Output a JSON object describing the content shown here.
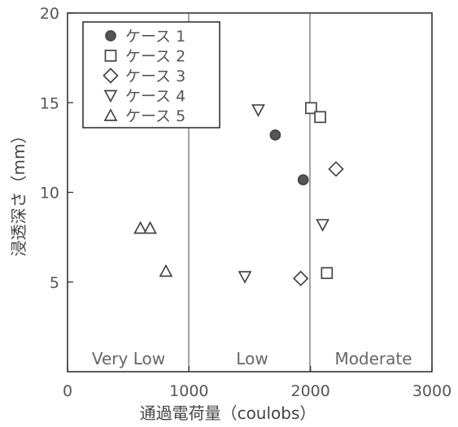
{
  "chart_data": {
    "type": "scatter",
    "title": "",
    "xlabel": "通過電荷量（coulobs）",
    "ylabel": "浸透深さ（mm）",
    "xlim": [
      0,
      3000
    ],
    "ylim": [
      0,
      20
    ],
    "x_ticks": [
      "0",
      "1000",
      "2000",
      "3000"
    ],
    "y_ticks": [
      "5",
      "10",
      "15",
      "20"
    ],
    "region_dividers": [
      1000,
      2000
    ],
    "regions": [
      "Very Low",
      "Low",
      "Moderate"
    ],
    "legend_position": "top-left",
    "series": [
      {
        "name": "ケース 1",
        "marker": "filled-circle",
        "points": [
          [
            1710,
            13.2
          ],
          [
            1940,
            10.7
          ]
        ]
      },
      {
        "name": "ケース 2",
        "marker": "square",
        "points": [
          [
            2005,
            14.7
          ],
          [
            2080,
            14.2
          ],
          [
            2135,
            5.5
          ]
        ]
      },
      {
        "name": "ケース 3",
        "marker": "diamond",
        "points": [
          [
            2210,
            11.3
          ],
          [
            1920,
            5.2
          ]
        ]
      },
      {
        "name": "ケース 4",
        "marker": "triangle-down",
        "points": [
          [
            1570,
            14.6
          ],
          [
            2100,
            8.2
          ],
          [
            1460,
            5.3
          ]
        ]
      },
      {
        "name": "ケース 5",
        "marker": "triangle-up",
        "points": [
          [
            600,
            8.0
          ],
          [
            680,
            8.0
          ],
          [
            810,
            5.6
          ]
        ]
      }
    ]
  }
}
